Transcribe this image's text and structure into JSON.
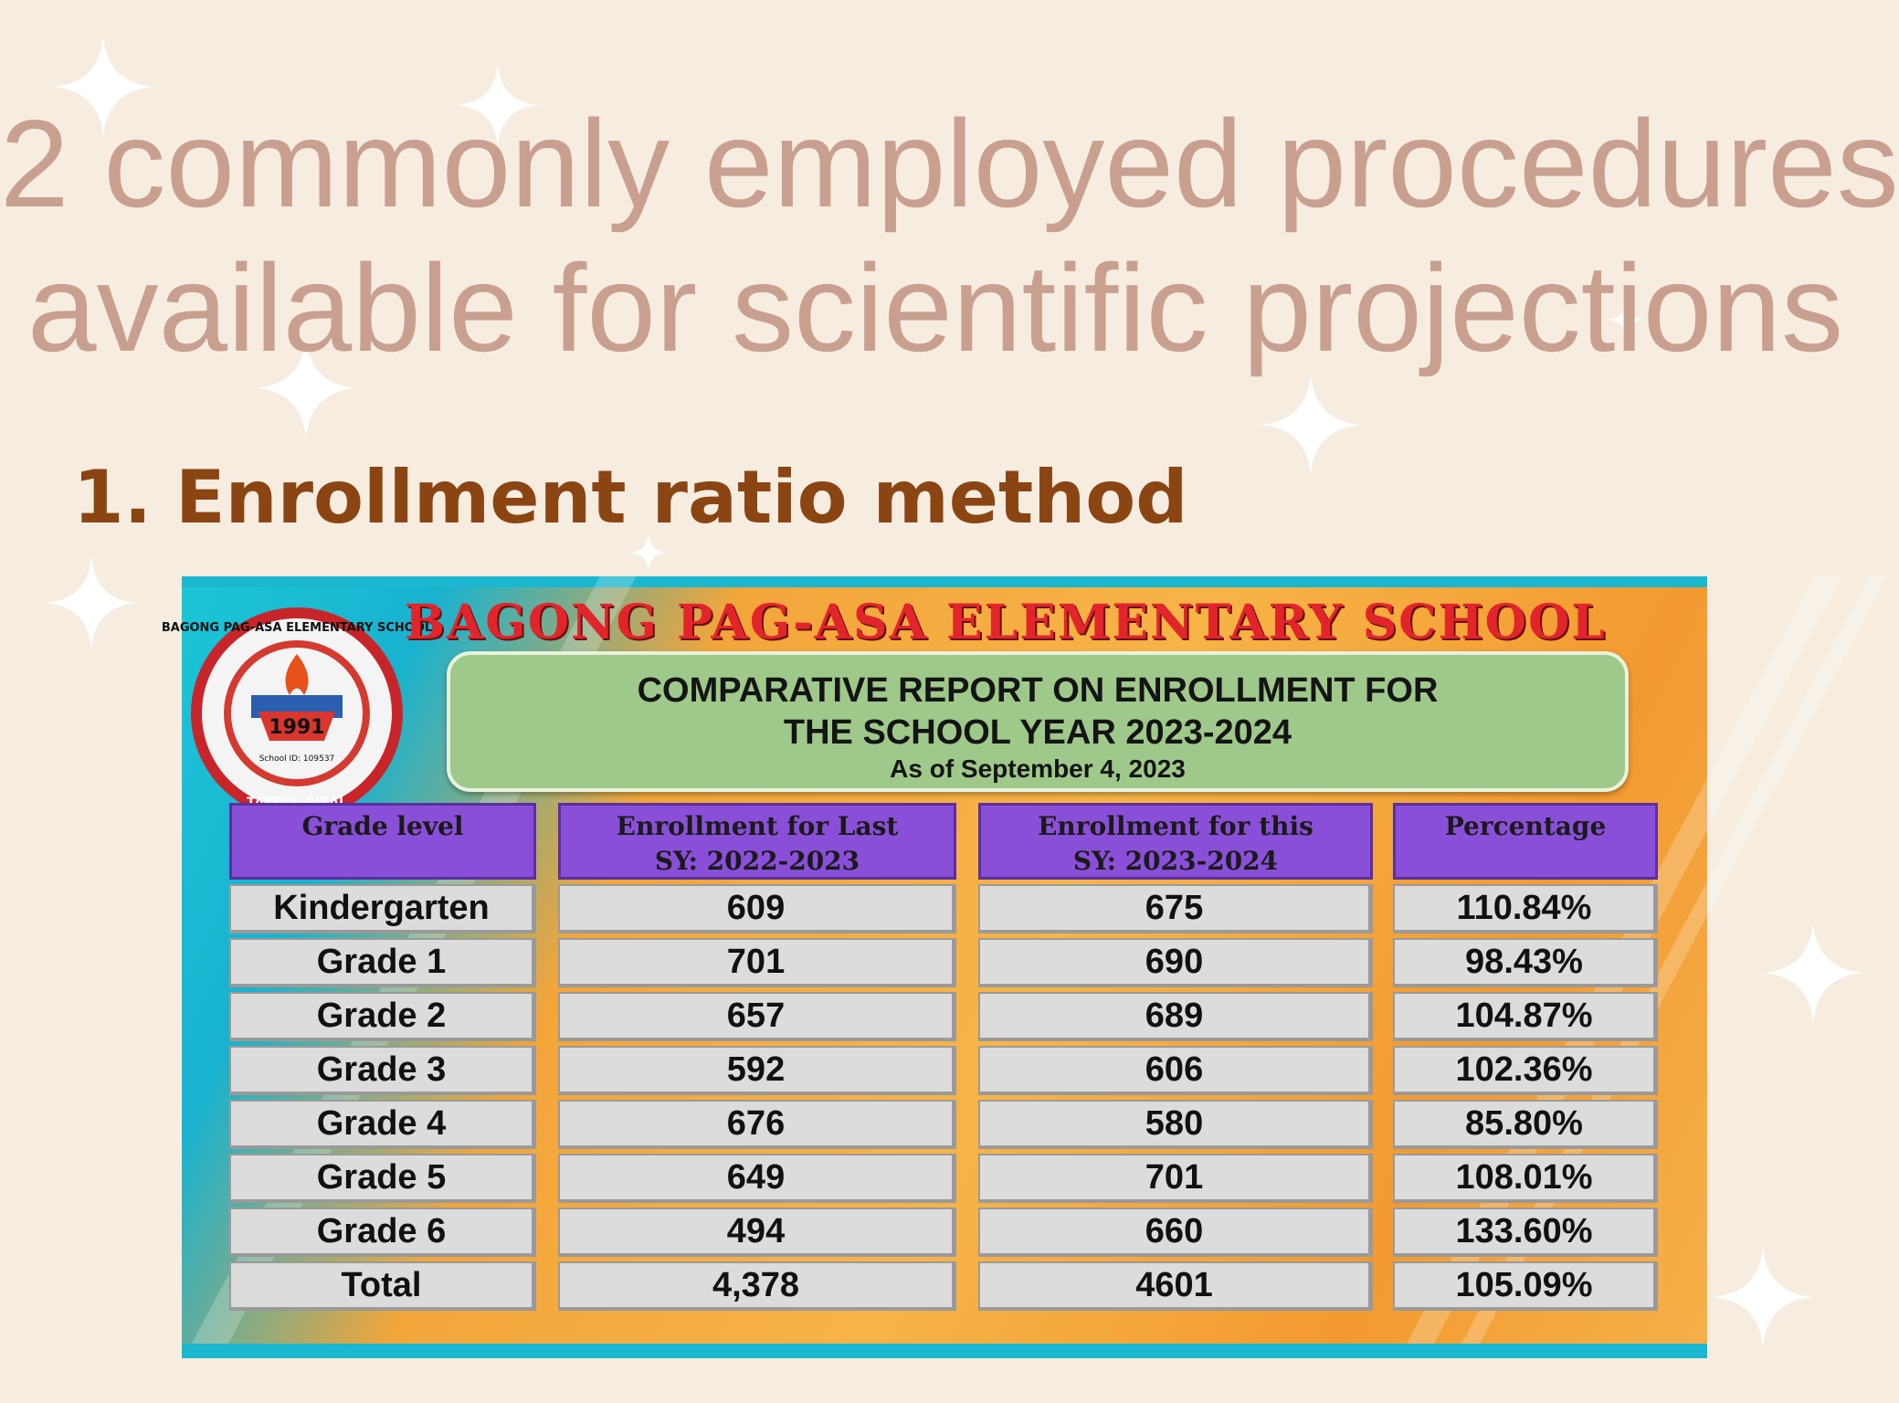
{
  "slide": {
    "title_line1": "2 commonly employed procedures",
    "title_line2": "available for scientific projections",
    "subhead_number": "1.",
    "subhead_text": "Enrollment ratio method"
  },
  "poster": {
    "school_name": "BAGONG PAG-ASA ELEMENTARY SCHOOL",
    "seal_year": "1991",
    "seal_ring_top": "BAGONG PAG-ASA ELEMENTARY SCHOOL",
    "seal_ring_bottom": "TAYTAY, RIZAL",
    "seal_school_id": "School ID: 109537",
    "report_line1": "COMPARATIVE REPORT ON ENROLLMENT FOR",
    "report_line2": "THE SCHOOL YEAR 2023-2024",
    "report_line3": "As of September 4, 2023"
  },
  "table": {
    "headers": {
      "grade": "Grade level",
      "last_l1": "Enrollment for Last",
      "last_l2": "SY: 2022-2023",
      "this_l1": "Enrollment for this",
      "this_l2": "SY: 2023-2024",
      "pct": "Percentage"
    },
    "rows": [
      {
        "grade": "Kindergarten",
        "last": "609",
        "this": "675",
        "pct": "110.84%"
      },
      {
        "grade": "Grade 1",
        "last": "701",
        "this": "690",
        "pct": "98.43%"
      },
      {
        "grade": "Grade 2",
        "last": "657",
        "this": "689",
        "pct": "104.87%"
      },
      {
        "grade": "Grade 3",
        "last": "592",
        "this": "606",
        "pct": "102.36%"
      },
      {
        "grade": "Grade 4",
        "last": "676",
        "this": "580",
        "pct": "85.80%"
      },
      {
        "grade": "Grade 5",
        "last": "649",
        "this": "701",
        "pct": "108.01%"
      },
      {
        "grade": "Grade 6",
        "last": "494",
        "this": "660",
        "pct": "133.60%"
      },
      {
        "grade": "Total",
        "last": "4,378",
        "this": "4601",
        "pct": "105.09%"
      }
    ]
  },
  "colors": {
    "background": "#f6ede0",
    "title": "#c9a090",
    "subhead": "#8b4513",
    "header_purple": "#8a4fd8",
    "report_green": "#9fc98a",
    "school_red": "#e2252b"
  }
}
